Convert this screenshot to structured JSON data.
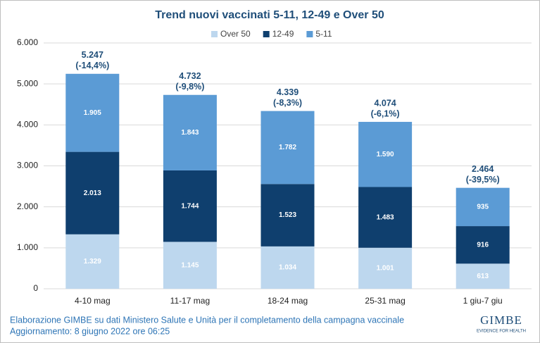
{
  "chart_data": {
    "type": "stacked_bar",
    "title": "Trend nuovi vaccinati 5-11, 12-49 e Over 50",
    "categories": [
      "4-10 mag",
      "11-17 mag",
      "18-24 mag",
      "25-31 mag",
      "1 giu-7 giu"
    ],
    "series": [
      {
        "name": "Over 50",
        "color": "#bdd7ee",
        "values": [
          1329,
          1145,
          1034,
          1001,
          613
        ],
        "value_labels": [
          "1.329",
          "1.145",
          "1.034",
          "1.001",
          "613"
        ]
      },
      {
        "name": "12-49",
        "color": "#0f3f6e",
        "values": [
          2013,
          1744,
          1523,
          1483,
          916
        ],
        "value_labels": [
          "2.013",
          "1.744",
          "1.523",
          "1.483",
          "916"
        ]
      },
      {
        "name": "5-11",
        "color": "#5b9bd5",
        "values": [
          1905,
          1843,
          1782,
          1590,
          935
        ],
        "value_labels": [
          "1.905",
          "1.843",
          "1.782",
          "1.590",
          "935"
        ]
      }
    ],
    "totals": {
      "values": [
        5247,
        4732,
        4339,
        4074,
        2464
      ],
      "value_labels": [
        "5.247",
        "4.732",
        "4.339",
        "4.074",
        "2.464"
      ]
    },
    "changes": {
      "values": [
        -14.4,
        -9.8,
        -8.3,
        -6.1,
        -39.5
      ],
      "value_labels": [
        "(-14,4%)",
        "(-9,8%)",
        "(-8,3%)",
        "(-6,1%)",
        "(-39,5%)"
      ]
    },
    "ylim": [
      0,
      6000
    ],
    "yticks": [
      0,
      {
        "value": 1000,
        "label": "1.000"
      },
      {
        "value": 2000,
        "label": "2.000"
      },
      {
        "value": 3000,
        "label": "3.000"
      },
      {
        "value": 4000,
        "label": "4.000"
      },
      {
        "value": 5000,
        "label": "5.000"
      },
      {
        "value": 6000,
        "label": "6.000"
      }
    ],
    "grid": true,
    "legend": "top"
  },
  "footer": {
    "source": "Elaborazione GIMBE su dati Ministero Salute e Unità per il completamento della campagna vaccinale",
    "updated": "Aggiornamento: 8 giugno 2022 ore 06:25"
  },
  "logo": {
    "name": "GIMBE",
    "tagline": "EVIDENCE FOR HEALTH"
  }
}
